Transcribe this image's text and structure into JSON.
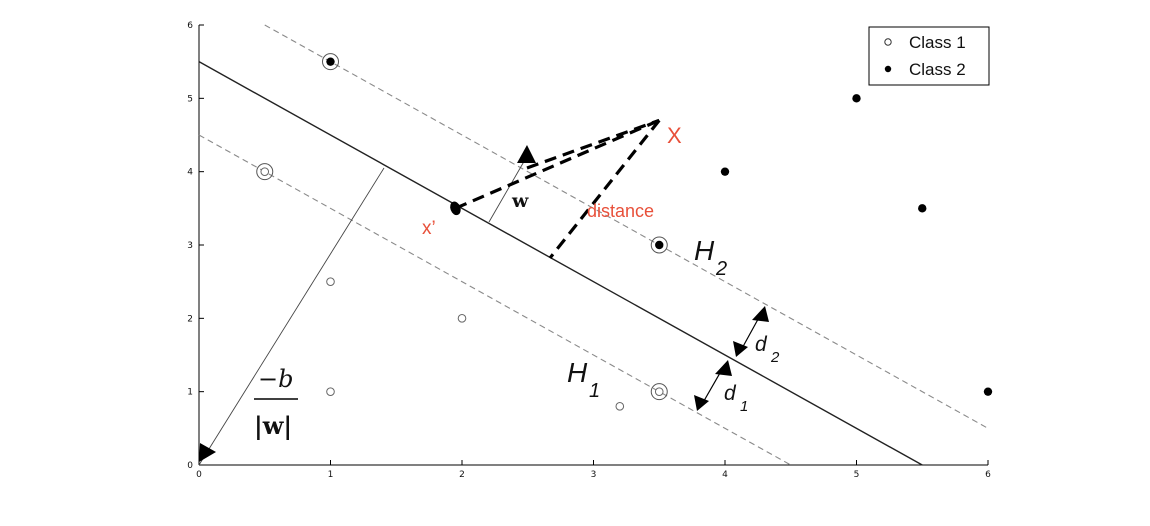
{
  "diagram": {
    "x_ticks": [
      "0",
      "1",
      "2",
      "3",
      "4",
      "5",
      "6"
    ],
    "y_ticks": [
      "0",
      "1",
      "2",
      "3",
      "4",
      "5",
      "6"
    ],
    "legend": {
      "class1": "Class 1",
      "class2": "Class 2"
    },
    "labels": {
      "point_x": "X",
      "point_x_prime": "x’",
      "distance": "distance",
      "w": "w",
      "h1_letter": "H",
      "h1_sub": "1",
      "h2_letter": "H",
      "h2_sub": "2",
      "d1_letter": "d",
      "d1_sub": "1",
      "d2_letter": "d",
      "d2_sub": "2",
      "b_numerator": "−b",
      "b_denominator": "|w|"
    },
    "colors": {
      "annotation_red": "#e8503a",
      "axis_black": "#000000",
      "margin_dashed": "#8a8a8a"
    }
  },
  "chart_data": {
    "type": "scatter",
    "x_range": [
      0,
      6
    ],
    "y_range": [
      0,
      6
    ],
    "series": [
      {
        "name": "Class 1",
        "marker": "open-circle",
        "points": [
          [
            1,
            1
          ],
          [
            1,
            2.5
          ],
          [
            2,
            2
          ],
          [
            3.2,
            0.8
          ],
          [
            0.5,
            4
          ],
          [
            3.5,
            1
          ]
        ]
      },
      {
        "name": "Class 2",
        "marker": "filled-circle",
        "points": [
          [
            1,
            5.5
          ],
          [
            3.5,
            3
          ],
          [
            4,
            4
          ],
          [
            5,
            5
          ],
          [
            5.5,
            3.5
          ],
          [
            6,
            1
          ]
        ]
      }
    ],
    "support_vectors": [
      [
        1,
        5.5
      ],
      [
        0.5,
        4
      ],
      [
        3.5,
        3
      ],
      [
        3.5,
        1
      ]
    ],
    "lines": [
      {
        "kind": "hyperplane",
        "from": [
          0,
          5.5
        ],
        "to": [
          5.5,
          0
        ]
      },
      {
        "kind": "margin-H2",
        "from": [
          0.5,
          6
        ],
        "to": [
          6,
          0.5
        ]
      },
      {
        "kind": "margin-H1",
        "from": [
          0,
          4.5
        ],
        "to": [
          4.5,
          0
        ]
      }
    ],
    "point_x": [
      3.5,
      4.7
    ],
    "point_x_prime": [
      1.95,
      3.5
    ]
  }
}
